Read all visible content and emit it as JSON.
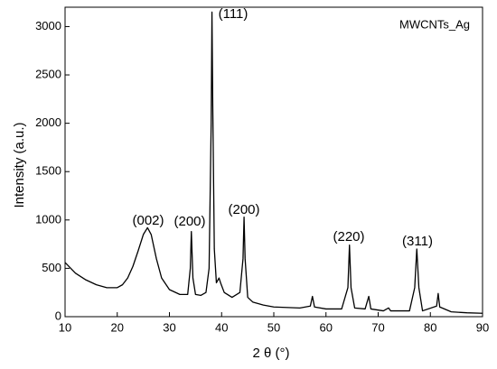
{
  "chart_data": {
    "type": "line",
    "x_label": "2 θ (°)",
    "y_label": "Intensity (a.u.)",
    "legend_text": "MWCNTs_Ag",
    "annotations": [
      "(002)",
      "(200)",
      "(111)",
      "(200)",
      "(220)",
      "(311)"
    ],
    "xlim": [
      10,
      90
    ],
    "xticks": [
      10,
      20,
      30,
      40,
      50,
      60,
      70,
      80,
      90
    ],
    "ylim": [
      0,
      3200
    ],
    "yticks": [
      0,
      500,
      1000,
      1500,
      2000,
      2500,
      3000
    ],
    "series": [
      {
        "color": "#000000",
        "x": [
          10,
          12,
          14,
          16,
          18,
          20,
          21,
          22,
          23,
          24,
          25,
          25.8,
          26.5,
          27.5,
          28.5,
          30,
          32,
          33.5,
          34,
          34.2,
          34.5,
          35,
          36,
          37,
          37.6,
          38.0,
          38.15,
          38.3,
          38.6,
          39,
          39.5,
          39.8,
          40.5,
          42,
          43.5,
          44.1,
          44.3,
          44.5,
          45,
          46,
          48,
          50,
          55,
          57,
          57.4,
          57.8,
          60,
          63,
          64.2,
          64.5,
          64.8,
          65.5,
          67.5,
          68.2,
          68.6,
          71,
          72,
          72.4,
          76,
          77,
          77.4,
          77.8,
          78.5,
          81.2,
          81.5,
          81.8,
          84,
          87,
          90
        ],
        "values": [
          560,
          450,
          380,
          330,
          300,
          300,
          330,
          400,
          520,
          680,
          850,
          920,
          850,
          600,
          400,
          280,
          230,
          230,
          500,
          880,
          400,
          230,
          220,
          250,
          500,
          2000,
          3150,
          2200,
          700,
          350,
          400,
          350,
          250,
          200,
          250,
          600,
          1030,
          600,
          200,
          150,
          120,
          100,
          90,
          110,
          210,
          100,
          80,
          80,
          300,
          740,
          300,
          90,
          80,
          210,
          80,
          60,
          90,
          60,
          60,
          300,
          700,
          300,
          60,
          110,
          240,
          100,
          50,
          40,
          35
        ]
      }
    ]
  }
}
